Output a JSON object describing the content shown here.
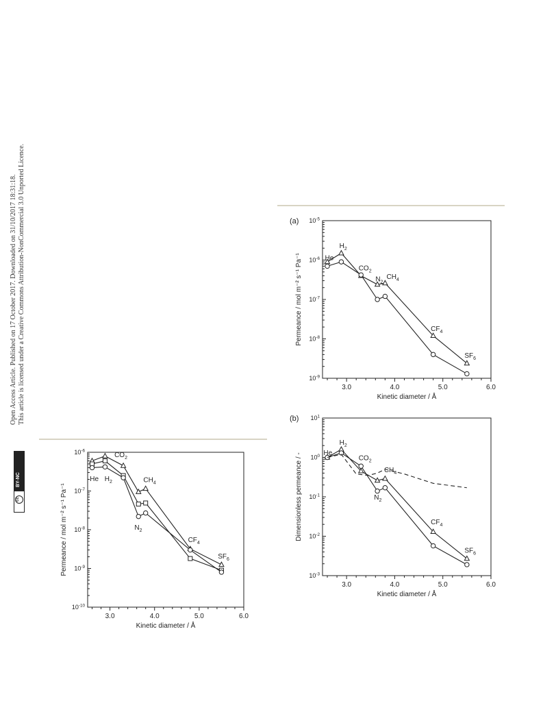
{
  "notice": {
    "line1": "Open Access Article. Published on 17 October 2017. Downloaded on 31/10/2017 18:31:18.",
    "line2": "This article is licensed under a Creative Commons Attribution-NonCommercial 3.0 Unported Licence.",
    "badge_text": "BY-NC",
    "badge_cc": "cc"
  },
  "chart_data": [
    {
      "type": "line",
      "panel_label": "(a)",
      "xlabel": "Kinetic diameter / Å",
      "ylabel": "Permeance / mol m⁻² s⁻¹ Pa⁻¹",
      "xlim": [
        2.5,
        6.0
      ],
      "ylim": [
        1e-09,
        1e-05
      ],
      "yscale": "log",
      "x_ticks": [
        "3.0",
        "4.0",
        "5.0",
        "6.0"
      ],
      "y_ticks": [
        {
          "base": "10",
          "exp": "-5",
          "value": 1e-05
        },
        {
          "base": "10",
          "exp": "-6",
          "value": 1e-06
        },
        {
          "base": "10",
          "exp": "-7",
          "value": 1e-07
        },
        {
          "base": "10",
          "exp": "-8",
          "value": 1e-08
        },
        {
          "base": "10",
          "exp": "-9",
          "value": 1e-09
        }
      ],
      "series": [
        {
          "marker": "triangle",
          "x": [
            2.6,
            2.89,
            3.3,
            3.64,
            3.8,
            4.8,
            5.5
          ],
          "y": [
            9e-07,
            1.5e-06,
            4e-07,
            2.4e-07,
            2.6e-07,
            1.2e-08,
            2.4e-09
          ]
        },
        {
          "marker": "circle",
          "x": [
            2.6,
            2.89,
            3.3,
            3.64,
            3.8,
            4.8,
            5.5
          ],
          "y": [
            7e-07,
            9e-07,
            4.2e-07,
            1e-07,
            1.2e-07,
            4e-09,
            1.3e-09
          ]
        }
      ],
      "annotations": [
        {
          "base": "He",
          "sub": "",
          "x": 2.55,
          "y": 1e-06
        },
        {
          "base": "H",
          "sub": "2",
          "x": 2.85,
          "y": 2e-06
        },
        {
          "base": "CO",
          "sub": "2",
          "x": 3.25,
          "y": 5.5e-07
        },
        {
          "base": "N",
          "sub": "2",
          "x": 3.6,
          "y": 2.9e-07
        },
        {
          "base": "CH",
          "sub": "4",
          "x": 3.83,
          "y": 3.3e-07
        },
        {
          "base": "CF",
          "sub": "4",
          "x": 4.75,
          "y": 1.6e-08
        },
        {
          "base": "SF",
          "sub": "6",
          "x": 5.45,
          "y": 3.3e-09
        }
      ]
    },
    {
      "type": "line",
      "panel_label": "(b)",
      "xlabel": "Kinetic diameter / Å",
      "ylabel": "Dimensionless permeance / -",
      "xlim": [
        2.5,
        6.0
      ],
      "ylim": [
        0.001,
        10
      ],
      "yscale": "log",
      "x_ticks": [
        "3.0",
        "4.0",
        "5.0",
        "6.0"
      ],
      "y_ticks": [
        {
          "base": "10",
          "exp": "1",
          "value": 10
        },
        {
          "base": "10",
          "exp": "0",
          "value": 1
        },
        {
          "base": "10",
          "exp": "-1",
          "value": 0.1
        },
        {
          "base": "10",
          "exp": "-2",
          "value": 0.01
        },
        {
          "base": "10",
          "exp": "-3",
          "value": 0.001
        }
      ],
      "series": [
        {
          "marker": "triangle",
          "x": [
            2.6,
            2.89,
            3.3,
            3.64,
            3.8,
            4.8,
            5.5
          ],
          "y": [
            1.0,
            1.6,
            0.45,
            0.26,
            0.29,
            0.013,
            0.0027
          ]
        },
        {
          "marker": "circle",
          "x": [
            2.6,
            2.89,
            3.3,
            3.64,
            3.8,
            4.8,
            5.5
          ],
          "y": [
            1.0,
            1.3,
            0.6,
            0.14,
            0.17,
            0.0057,
            0.0019
          ]
        },
        {
          "marker": "none",
          "style": "dashed",
          "x": [
            2.6,
            2.89,
            3.2,
            3.45,
            3.64,
            3.8,
            4.2,
            4.8,
            5.5
          ],
          "y": [
            1.0,
            1.2,
            0.38,
            0.35,
            0.4,
            0.5,
            0.38,
            0.22,
            0.17
          ]
        }
      ],
      "annotations": [
        {
          "base": "He",
          "sub": "",
          "x": 2.52,
          "y": 1.15
        },
        {
          "base": "H",
          "sub": "2",
          "x": 2.85,
          "y": 2.1
        },
        {
          "base": "CO",
          "sub": "2",
          "x": 3.25,
          "y": 0.85
        },
        {
          "base": "CH",
          "sub": "4",
          "x": 3.78,
          "y": 0.42
        },
        {
          "base": "N",
          "sub": "2",
          "x": 3.57,
          "y": 0.085
        },
        {
          "base": "CF",
          "sub": "4",
          "x": 4.75,
          "y": 0.02
        },
        {
          "base": "SF",
          "sub": "6",
          "x": 5.45,
          "y": 0.0038
        }
      ]
    },
    {
      "type": "line",
      "panel_label": "",
      "xlabel": "Kinetic diameter / Å",
      "ylabel": "Permeance / mol m⁻² s⁻¹ Pa⁻¹",
      "xlim": [
        2.5,
        6.0
      ],
      "ylim": [
        1e-10,
        1e-06
      ],
      "yscale": "log",
      "x_ticks": [
        "3.0",
        "4.0",
        "5.0",
        "6.0"
      ],
      "y_ticks": [
        {
          "base": "10",
          "exp": "-6",
          "value": 1e-06
        },
        {
          "base": "10",
          "exp": "-7",
          "value": 1e-07
        },
        {
          "base": "10",
          "exp": "-8",
          "value": 1e-08
        },
        {
          "base": "10",
          "exp": "-9",
          "value": 1e-09
        },
        {
          "base": "10",
          "exp": "-10",
          "value": 1e-10
        }
      ],
      "series": [
        {
          "marker": "triangle",
          "x": [
            2.6,
            2.89,
            3.3,
            3.64,
            3.8,
            4.8,
            5.5
          ],
          "y": [
            6e-07,
            8e-07,
            4.5e-07,
            9.5e-08,
            1.15e-07,
            3.2e-09,
            1.25e-09
          ]
        },
        {
          "marker": "square",
          "x": [
            2.6,
            2.89,
            3.3,
            3.64,
            3.8,
            4.8,
            5.5
          ],
          "y": [
            5e-07,
            6e-07,
            2.5e-07,
            4.6e-08,
            4.9e-08,
            1.8e-09,
            9e-10
          ]
        },
        {
          "marker": "circle",
          "x": [
            2.6,
            2.89,
            3.3,
            3.64,
            3.8,
            4.8,
            5.5
          ],
          "y": [
            4e-07,
            4.2e-07,
            2.2e-07,
            2.2e-08,
            2.7e-08,
            3e-09,
            8e-10
          ]
        }
      ],
      "annotations": [
        {
          "base": "CO",
          "sub": "2",
          "x": 3.1,
          "y": 7.5e-07
        },
        {
          "base": "He",
          "sub": "",
          "x": 2.55,
          "y": 1.8e-07
        },
        {
          "base": "H",
          "sub": "2",
          "x": 2.88,
          "y": 1.8e-07
        },
        {
          "base": "CH",
          "sub": "4",
          "x": 3.75,
          "y": 1.7e-07
        },
        {
          "base": "N",
          "sub": "2",
          "x": 3.55,
          "y": 1e-08
        },
        {
          "base": "CF",
          "sub": "4",
          "x": 4.75,
          "y": 4.8e-09
        },
        {
          "base": "SF",
          "sub": "6",
          "x": 5.42,
          "y": 1.8e-09
        }
      ]
    }
  ]
}
